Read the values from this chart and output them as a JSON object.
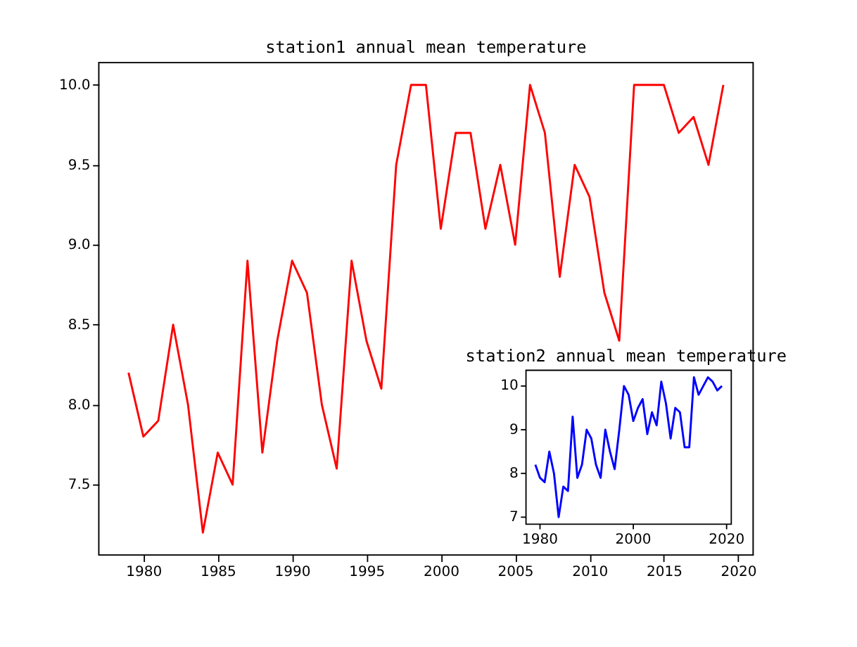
{
  "chart_data": [
    {
      "type": "line",
      "title": "station1 annual mean temperature",
      "x": [
        1979,
        1980,
        1981,
        1982,
        1983,
        1984,
        1985,
        1986,
        1987,
        1988,
        1989,
        1990,
        1991,
        1992,
        1993,
        1994,
        1995,
        1996,
        1997,
        1998,
        1999,
        2000,
        2001,
        2002,
        2003,
        2004,
        2005,
        2006,
        2007,
        2008,
        2009,
        2010,
        2011,
        2012,
        2013,
        2014,
        2015,
        2016,
        2017,
        2018,
        2019
      ],
      "series": [
        {
          "color": "#ff0000",
          "values": [
            8.2,
            7.8,
            7.9,
            8.5,
            8.0,
            7.2,
            7.7,
            7.5,
            8.9,
            7.7,
            8.4,
            8.9,
            8.7,
            8.0,
            7.6,
            8.9,
            8.4,
            8.1,
            9.5,
            10.0,
            10.0,
            9.1,
            9.7,
            9.7,
            9.1,
            9.5,
            9.0,
            10.0,
            9.7,
            8.8,
            9.5,
            9.3,
            8.7,
            8.4,
            10.0,
            10.0,
            10.0,
            9.7,
            9.8,
            9.5,
            10.0
          ]
        }
      ],
      "xlim": [
        1977,
        2021
      ],
      "xticks": [
        1980,
        1985,
        1990,
        1995,
        2000,
        2005,
        2010,
        2015,
        2020
      ],
      "ylim": [
        7.06,
        10.14
      ],
      "yticks": [
        7.5,
        {
          "value": 8,
          "label": "8.0"
        },
        8.5,
        {
          "value": 9,
          "label": "9.0"
        },
        9.5,
        {
          "value": 10,
          "label": "10.0"
        }
      ],
      "grid": false
    },
    {
      "type": "line",
      "title": "station2 annual mean temperature",
      "x": [
        1979,
        1980,
        1981,
        1982,
        1983,
        1984,
        1985,
        1986,
        1987,
        1988,
        1989,
        1990,
        1991,
        1992,
        1993,
        1994,
        1995,
        1996,
        1997,
        1998,
        1999,
        2000,
        2001,
        2002,
        2003,
        2004,
        2005,
        2006,
        2007,
        2008,
        2009,
        2010,
        2011,
        2012,
        2013,
        2014,
        2015,
        2016,
        2017,
        2018,
        2019
      ],
      "series": [
        {
          "color": "#0000ff",
          "values": [
            8.2,
            7.9,
            7.8,
            8.5,
            8.0,
            7.0,
            7.7,
            7.6,
            9.3,
            7.9,
            8.2,
            9.0,
            8.8,
            8.2,
            7.9,
            9.0,
            8.5,
            8.1,
            9.0,
            10.0,
            9.8,
            9.2,
            9.5,
            9.7,
            8.9,
            9.4,
            9.1,
            10.1,
            9.6,
            8.8,
            9.5,
            9.4,
            8.6,
            8.6,
            10.2,
            9.8,
            10.0,
            10.2,
            10.1,
            9.9,
            10.0
          ]
        }
      ],
      "xlim": [
        1977,
        2021
      ],
      "xticks": [
        1980,
        2000,
        2020
      ],
      "ylim": [
        6.84,
        10.36
      ],
      "yticks": [
        7,
        8,
        9,
        10
      ]
    }
  ]
}
